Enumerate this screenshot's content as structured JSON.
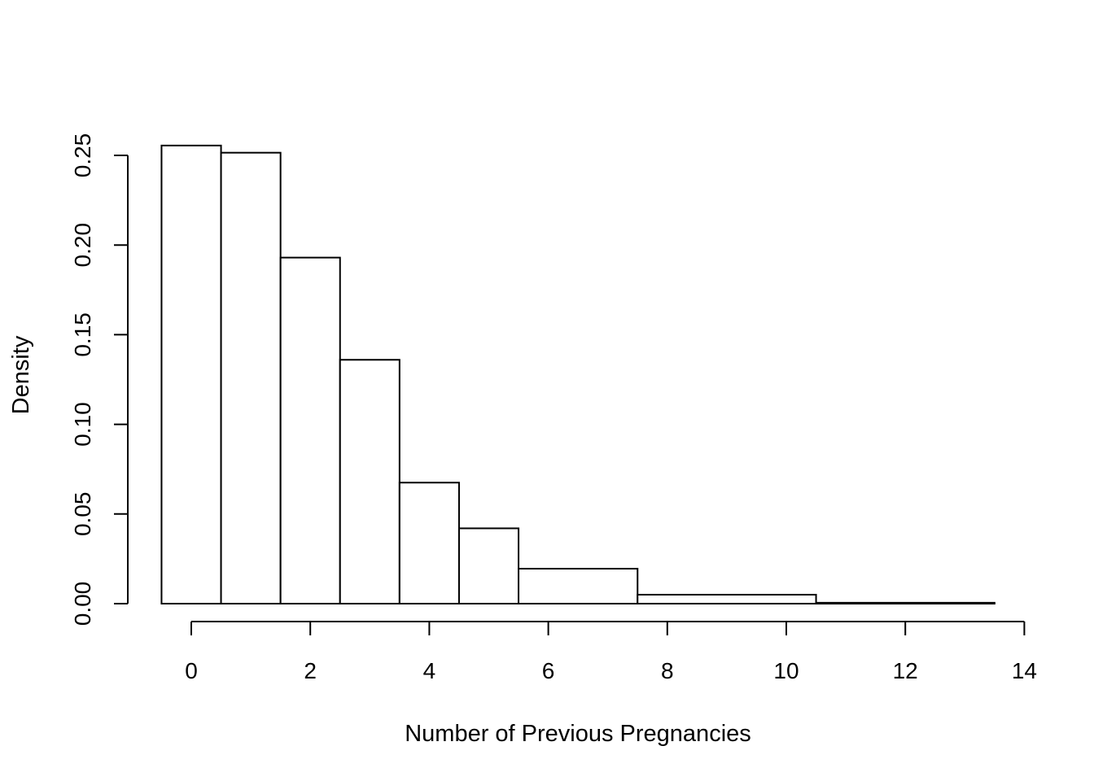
{
  "chart_data": {
    "type": "bar",
    "subtype": "histogram",
    "title": "",
    "xlabel": "Number of Previous Pregnancies",
    "ylabel": "Density",
    "xlim": [
      -0.5,
      13.5
    ],
    "ylim": [
      0,
      0.255
    ],
    "x_ticks": [
      0,
      2,
      4,
      6,
      8,
      10,
      12,
      14
    ],
    "x_tick_labels": [
      "0",
      "2",
      "4",
      "6",
      "8",
      "10",
      "12",
      "14"
    ],
    "y_ticks": [
      0,
      0.05,
      0.1,
      0.15,
      0.2,
      0.25
    ],
    "y_tick_labels": [
      "0.00",
      "0.05",
      "0.10",
      "0.15",
      "0.20",
      "0.25"
    ],
    "bins": [
      {
        "x0": -0.5,
        "x1": 0.5,
        "density": 0.2555
      },
      {
        "x0": 0.5,
        "x1": 1.5,
        "density": 0.2515
      },
      {
        "x0": 1.5,
        "x1": 2.5,
        "density": 0.193
      },
      {
        "x0": 2.5,
        "x1": 3.5,
        "density": 0.136
      },
      {
        "x0": 3.5,
        "x1": 4.5,
        "density": 0.0675
      },
      {
        "x0": 4.5,
        "x1": 5.5,
        "density": 0.042
      },
      {
        "x0": 5.5,
        "x1": 7.5,
        "density": 0.0195
      },
      {
        "x0": 7.5,
        "x1": 10.5,
        "density": 0.005
      },
      {
        "x0": 10.5,
        "x1": 13.5,
        "density": 0.0005
      }
    ],
    "grid": false,
    "legend": "none",
    "bar_fill": "#ffffff",
    "bar_stroke": "#000000"
  }
}
